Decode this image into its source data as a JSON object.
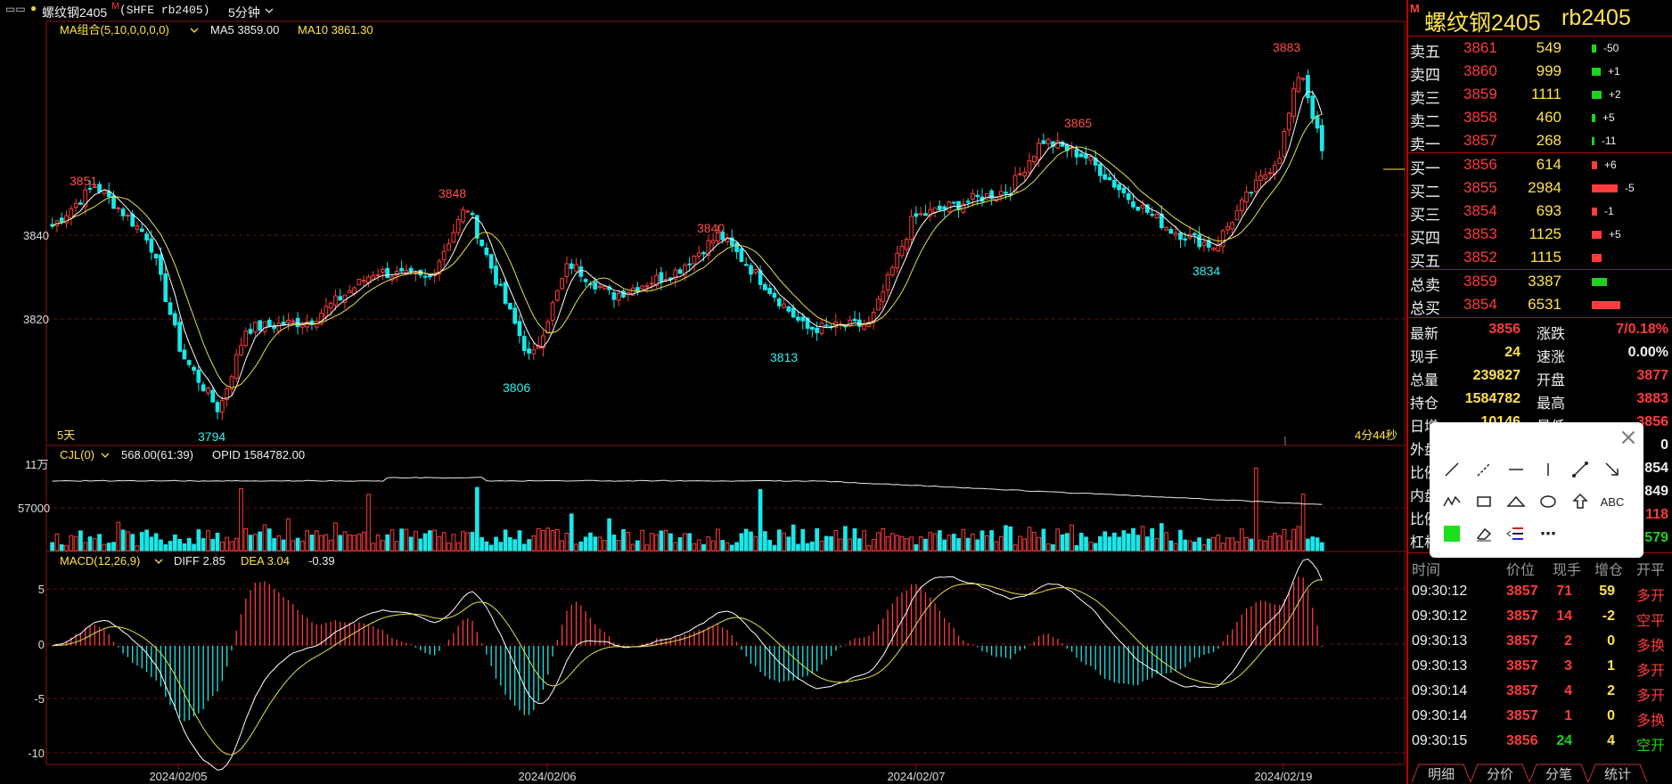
{
  "topbar": {
    "window_controls": "▭▭",
    "symbol_name": "螺纹钢2405",
    "badge": "M",
    "code": "(SHFE rb2405)",
    "period": "5分钟"
  },
  "indicators": {
    "ma": {
      "name": "MA组合(5,10,0,0,0,0)",
      "ma5": "MA5 3859.00",
      "ma10": "MA10 3861.30"
    },
    "cjl": {
      "name": "CJL(0)",
      "value": "568.00(61:39)",
      "opid": "OPID 1584782.00"
    },
    "macd": {
      "name": "MACD(12,26,9)",
      "diff": "DIFF 2.85",
      "dea": "DEA 3.04",
      "macd": "-0.39"
    }
  },
  "main_panel": {
    "y_labels": [
      "3840",
      "3820"
    ],
    "range_label": "5天",
    "countdown": "4分44秒",
    "annotations": {
      "a3851": "3851",
      "a3794": "3794",
      "a3848": "3848",
      "a3806": "3806",
      "a3840": "3840",
      "a3813": "3813",
      "a3865": "3865",
      "a3834": "3834",
      "a3883": "3883"
    }
  },
  "volume_panel": {
    "y_labels": [
      "11万",
      "57000"
    ]
  },
  "macd_panel": {
    "y_labels": [
      "5",
      "0",
      "-5",
      "-10"
    ]
  },
  "x_dates": [
    "2024/02/05",
    "2024/02/06",
    "2024/02/07",
    "2024/02/19"
  ],
  "right_panel": {
    "badge": "M",
    "title": "螺纹钢2405",
    "code": "rb2405",
    "sell_rows": [
      {
        "label": "卖五",
        "price": "3861",
        "vol": "549",
        "chg": "-50",
        "bar": 0.1
      },
      {
        "label": "卖四",
        "price": "3860",
        "vol": "999",
        "chg": "+1",
        "bar": 0.18
      },
      {
        "label": "卖三",
        "price": "3859",
        "vol": "1111",
        "chg": "+2",
        "bar": 0.2
      },
      {
        "label": "卖二",
        "price": "3858",
        "vol": "460",
        "chg": "+5",
        "bar": 0.08
      },
      {
        "label": "卖一",
        "price": "3857",
        "vol": "268",
        "chg": "-11",
        "bar": 0.05
      }
    ],
    "buy_rows": [
      {
        "label": "买一",
        "price": "3856",
        "vol": "614",
        "chg": "+6",
        "bar": 0.11
      },
      {
        "label": "买二",
        "price": "3855",
        "vol": "2984",
        "chg": "-5",
        "bar": 0.54
      },
      {
        "label": "买三",
        "price": "3854",
        "vol": "693",
        "chg": "-1",
        "bar": 0.12
      },
      {
        "label": "买四",
        "price": "3853",
        "vol": "1125",
        "chg": "+5",
        "bar": 0.2
      },
      {
        "label": "买五",
        "price": "3852",
        "vol": "1115",
        "chg": "",
        "bar": 0.2
      }
    ],
    "totals": [
      {
        "label": "总卖",
        "price": "3859",
        "vol": "3387",
        "bar": 0.31,
        "color": "#1dd31d"
      },
      {
        "label": "总买",
        "price": "3854",
        "vol": "6531",
        "bar": 0.6,
        "color": "#ff3b3b"
      }
    ],
    "stats": [
      {
        "l1": "最新",
        "v1": "3856",
        "c1": "#ff3b3b",
        "l2": "涨跌",
        "v2": "7/0.18%",
        "c2": "#ff3b3b"
      },
      {
        "l1": "现手",
        "v1": "24",
        "c1": "#ffe34a",
        "l2": "速涨",
        "v2": "0.00%",
        "c2": "#f0f0f0"
      },
      {
        "l1": "总量",
        "v1": "239827",
        "c1": "#ffe34a",
        "l2": "开盘",
        "v2": "3877",
        "c2": "#ff3b3b"
      },
      {
        "l1": "持仓",
        "v1": "1584782",
        "c1": "#ffe34a",
        "l2": "最高",
        "v2": "3883",
        "c2": "#ff3b3b"
      },
      {
        "l1": "日增",
        "v1": "10146",
        "c1": "#ffe34a",
        "l2": "最低",
        "v2": "3856",
        "c2": "#ff3b3b"
      },
      {
        "l1": "外盘",
        "v1": "",
        "c1": "#ff3b3b",
        "l2": "",
        "v2": "0",
        "c2": "#f0f0f0"
      },
      {
        "l1": "比例",
        "v1": "",
        "c1": "#ff3b3b",
        "l2": "",
        "v2": "854",
        "c2": "#f0f0f0"
      },
      {
        "l1": "内盘",
        "v1": "",
        "c1": "#1dd31d",
        "l2": "",
        "v2": "849",
        "c2": "#f0f0f0"
      },
      {
        "l1": "比例",
        "v1": "",
        "c1": "#1dd31d",
        "l2": "",
        "v2": "118",
        "c2": "#ff3b3b"
      },
      {
        "l1": "杠杆",
        "v1": "",
        "c1": "#1dd31d",
        "l2": "",
        "v2": "579",
        "c2": "#1dd31d"
      }
    ],
    "trades_header": {
      "time": "时间",
      "price": "价位",
      "qty": "现手",
      "inc": "增仓",
      "type": "开平"
    },
    "trades": [
      {
        "time": "09:30:12",
        "price": "3857",
        "qty": "71",
        "inc": "59",
        "type": "多开",
        "pc": "#ff3b3b",
        "qc": "#ff3b3b",
        "ic": "#ffe34a",
        "tc": "#ff3b3b"
      },
      {
        "time": "09:30:12",
        "price": "3857",
        "qty": "14",
        "inc": "-2",
        "type": "空平",
        "pc": "#ff3b3b",
        "qc": "#ff3b3b",
        "ic": "#ffe34a",
        "tc": "#ff3b3b"
      },
      {
        "time": "09:30:13",
        "price": "3857",
        "qty": "2",
        "inc": "0",
        "type": "多换",
        "pc": "#ff3b3b",
        "qc": "#ff3b3b",
        "ic": "#ffe34a",
        "tc": "#ff3b3b"
      },
      {
        "time": "09:30:13",
        "price": "3857",
        "qty": "3",
        "inc": "1",
        "type": "多开",
        "pc": "#ff3b3b",
        "qc": "#ff3b3b",
        "ic": "#ffe34a",
        "tc": "#ff3b3b"
      },
      {
        "time": "09:30:14",
        "price": "3857",
        "qty": "4",
        "inc": "2",
        "type": "多开",
        "pc": "#ff3b3b",
        "qc": "#ff3b3b",
        "ic": "#ffe34a",
        "tc": "#ff3b3b"
      },
      {
        "time": "09:30:14",
        "price": "3857",
        "qty": "1",
        "inc": "0",
        "type": "多换",
        "pc": "#ff3b3b",
        "qc": "#ff3b3b",
        "ic": "#ffe34a",
        "tc": "#ff3b3b"
      },
      {
        "time": "09:30:15",
        "price": "3856",
        "qty": "24",
        "inc": "4",
        "type": "空开",
        "pc": "#ff3b3b",
        "qc": "#1dd31d",
        "ic": "#ffe34a",
        "tc": "#1dd31d"
      }
    ],
    "tabs": [
      "明细",
      "分价",
      "分笔",
      "统计"
    ]
  },
  "toolbox": {
    "close_icon": "close-icon",
    "text_tool": "ABC",
    "more": "⋯"
  },
  "colors": {
    "up": "#ff3b3b",
    "down": "#18e8e8",
    "ma5": "#ffffff",
    "ma10": "#e6e04a",
    "grid": "#8b1010"
  },
  "chart_data": {
    "type": "candlestick",
    "symbol": "rb2405",
    "interval": "5分钟",
    "x_dates": [
      "2024/02/05",
      "2024/02/06",
      "2024/02/07",
      "2024/02/19"
    ],
    "price_ylim": [
      3788,
      3890
    ],
    "price_anchor_points": [
      {
        "x_frac": 0.0,
        "close": 3841
      },
      {
        "x_frac": 0.04,
        "close": 3851
      },
      {
        "x_frac": 0.09,
        "close": 3838
      },
      {
        "x_frac": 0.12,
        "close": 3810
      },
      {
        "x_frac": 0.155,
        "close": 3796
      },
      {
        "x_frac": 0.18,
        "close": 3816
      },
      {
        "x_frac": 0.24,
        "close": 3818
      },
      {
        "x_frac": 0.3,
        "close": 3830
      },
      {
        "x_frac": 0.35,
        "close": 3828
      },
      {
        "x_frac": 0.385,
        "close": 3846
      },
      {
        "x_frac": 0.42,
        "close": 3823
      },
      {
        "x_frac": 0.445,
        "close": 3808
      },
      {
        "x_frac": 0.48,
        "close": 3832
      },
      {
        "x_frac": 0.52,
        "close": 3824
      },
      {
        "x_frac": 0.58,
        "close": 3830
      },
      {
        "x_frac": 0.62,
        "close": 3839
      },
      {
        "x_frac": 0.665,
        "close": 3826
      },
      {
        "x_frac": 0.7,
        "close": 3816
      },
      {
        "x_frac": 0.76,
        "close": 3817
      },
      {
        "x_frac": 0.8,
        "close": 3843
      },
      {
        "x_frac": 0.85,
        "close": 3847
      },
      {
        "x_frac": 0.89,
        "close": 3850
      },
      {
        "x_frac": 0.92,
        "close": 3862
      },
      {
        "x_frac": 0.96,
        "close": 3858
      },
      {
        "x_frac": 1.0,
        "close": 3848
      },
      {
        "x_frac": 1.04,
        "close": 3840
      },
      {
        "x_frac": 1.08,
        "close": 3836
      },
      {
        "x_frac": 1.11,
        "close": 3848
      },
      {
        "x_frac": 1.14,
        "close": 3858
      },
      {
        "x_frac": 1.16,
        "close": 3880
      },
      {
        "x_frac": 1.18,
        "close": 3859
      }
    ],
    "volume_ylim": [
      0,
      110000
    ],
    "macd_ylim": [
      -11,
      7
    ]
  }
}
